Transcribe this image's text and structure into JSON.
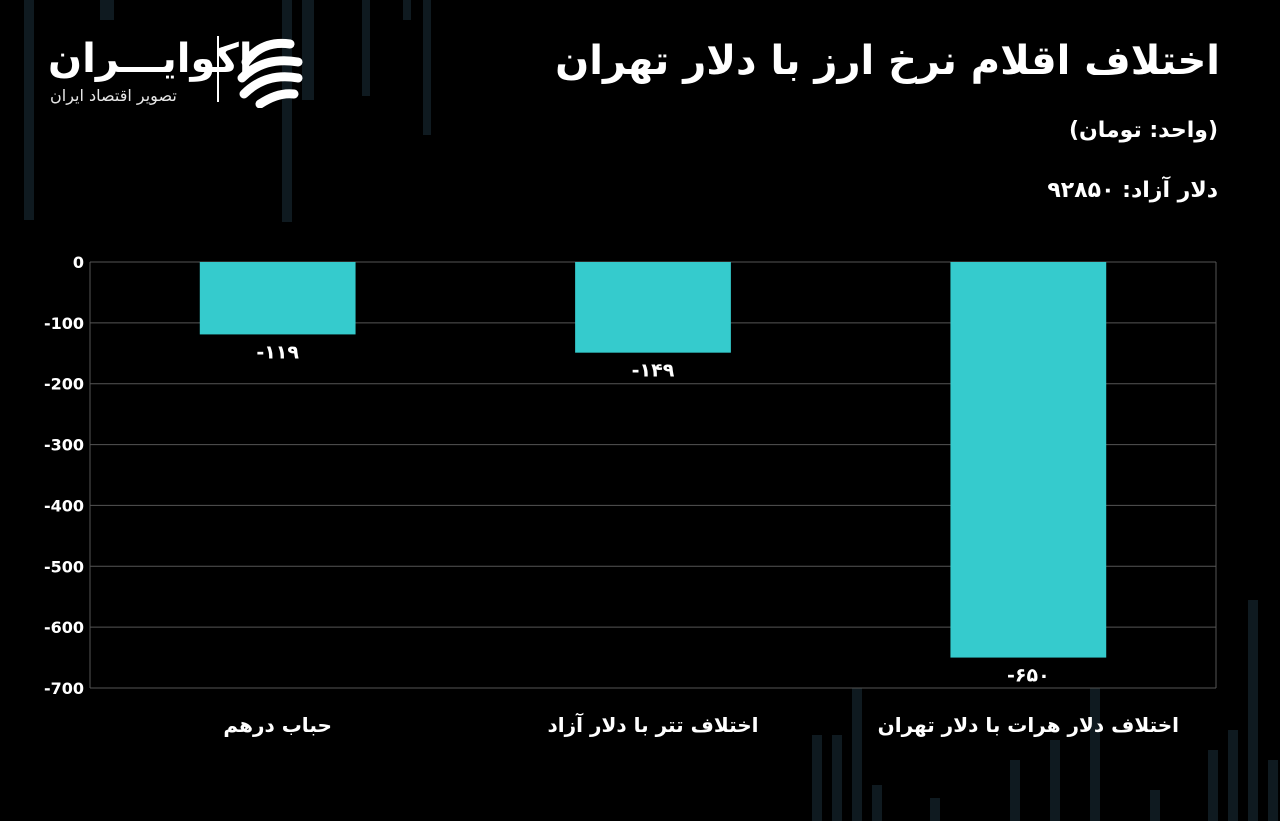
{
  "header": {
    "title": "اختلاف اقلام نرخ ارز با دلار تهران",
    "unit": "(واحد: تومان)",
    "free_dollar": "دلار آزاد: ۹۲۸۵۰"
  },
  "logo": {
    "name": "اکوایـــران",
    "tagline": "تصویر اقتصاد ایران"
  },
  "colors": {
    "background": "#000000",
    "bar": "#35CBCD",
    "grid": "#555555",
    "text": "#ffffff"
  },
  "chart_data": {
    "type": "bar",
    "title": "اختلاف اقلام نرخ ارز با دلار تهران",
    "xlabel": "",
    "ylabel": "",
    "unit": "تومان",
    "ylim": [
      -700,
      0
    ],
    "yticks": [
      0,
      -100,
      -200,
      -300,
      -400,
      -500,
      -600,
      -700
    ],
    "ytick_labels": [
      "0",
      "-100",
      "-200",
      "-300",
      "-400",
      "-500",
      "-600",
      "-700"
    ],
    "categories": [
      "حباب درهم",
      "اختلاف تتر با دلار آزاد",
      "اختلاف دلار هرات با دلار تهران"
    ],
    "values": [
      -119,
      -149,
      -650
    ],
    "data_labels": [
      "-۱۱۹",
      "-۱۴۹",
      "-۶۵۰"
    ],
    "grid": true,
    "legend": "none"
  }
}
